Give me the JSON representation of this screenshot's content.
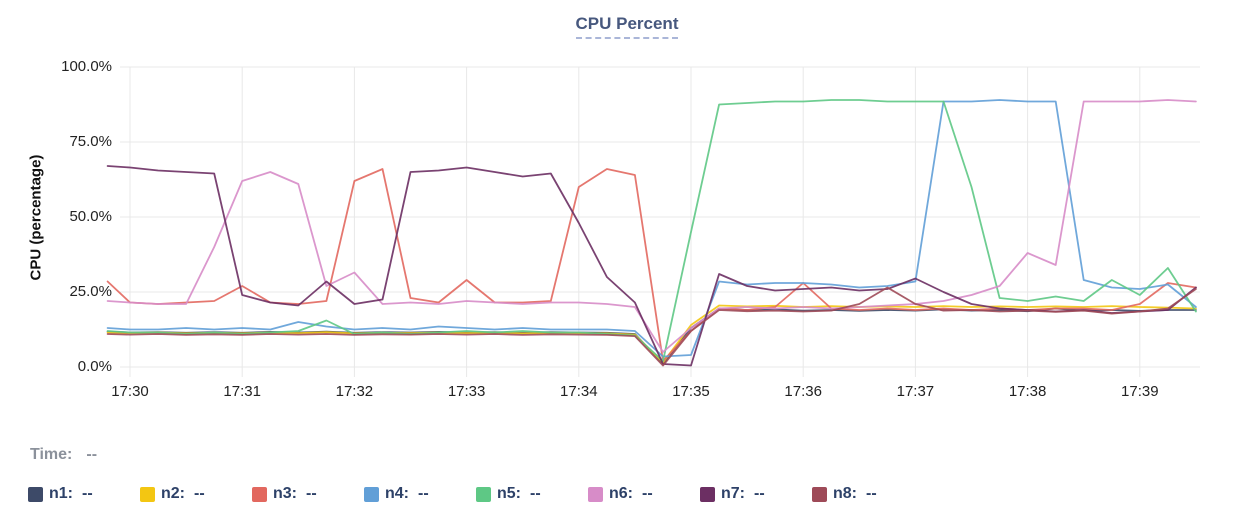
{
  "title": "CPU Percent",
  "time_row": {
    "label": "Time:",
    "value": "--"
  },
  "colors": {
    "title_text": "#47587e",
    "title_underline": "#aab6d8",
    "grid_line": "#e8e8e8",
    "tick_text": "#222222",
    "legend_text": "#2d4168",
    "muted_text": "#8b919b"
  },
  "chart_data": {
    "type": "line",
    "title": "CPU Percent",
    "xlabel": "",
    "ylabel": "CPU (percentage)",
    "ylim": [
      0,
      100
    ],
    "y_tick_values": [
      100,
      75,
      50,
      25,
      0
    ],
    "y_tick_labels": [
      "100.0%",
      "75.0%",
      "50.0%",
      "25.0%",
      "0.0%"
    ],
    "x_tick_labels": [
      "17:30",
      "17:31",
      "17:32",
      "17:33",
      "17:34",
      "17:35",
      "17:36",
      "17:37",
      "17:38",
      "17:39"
    ],
    "x_unit": "minutes after 17:30",
    "grid": true,
    "legend_position": "bottom",
    "x": [
      -0.2,
      0,
      0.25,
      0.5,
      0.75,
      1,
      1.25,
      1.5,
      1.75,
      2,
      2.25,
      2.5,
      2.75,
      3,
      3.25,
      3.5,
      3.75,
      4,
      4.25,
      4.5,
      4.75,
      5,
      5.25,
      5.5,
      5.75,
      6,
      6.25,
      6.5,
      6.75,
      7,
      7.25,
      7.5,
      7.75,
      8,
      8.25,
      8.5,
      8.75,
      9,
      9.25,
      9.5
    ],
    "series": [
      {
        "name": "n1",
        "legend_value": "--",
        "color": "#3D4A68",
        "values": [
          11.8,
          11.5,
          11.6,
          11.4,
          11.6,
          11.4,
          11.7,
          11.5,
          11.8,
          11.4,
          11.6,
          11.5,
          11.7,
          11.5,
          11.6,
          11.4,
          11.6,
          11.5,
          11.4,
          11,
          1,
          13,
          19.5,
          19,
          19.2,
          18.8,
          19,
          18.7,
          19,
          18.8,
          19.2,
          18.8,
          19,
          18.6,
          19.5,
          18.8,
          19,
          18.7,
          19,
          19
        ]
      },
      {
        "name": "n2",
        "legend_value": "--",
        "color": "#F3C612",
        "values": [
          11.5,
          11.3,
          11.5,
          11.2,
          11.4,
          11.2,
          11.5,
          11.3,
          11.6,
          11.2,
          11.4,
          11.3,
          11.5,
          11.3,
          11.5,
          11.2,
          11.4,
          11.3,
          11.2,
          10.8,
          1.5,
          14,
          20.5,
          20.2,
          20.4,
          20,
          20.3,
          20,
          20.2,
          20,
          20.3,
          20,
          20.2,
          20,
          20.2,
          20,
          20.3,
          20,
          19.8,
          19.5
        ]
      },
      {
        "name": "n3",
        "legend_value": "--",
        "color": "#E2685F",
        "values": [
          28.5,
          21.5,
          21,
          21.5,
          22,
          27,
          21.5,
          21,
          22,
          62,
          66,
          23,
          21.5,
          29,
          21.5,
          21.5,
          22,
          60,
          66,
          64,
          2,
          12,
          19.5,
          19,
          20,
          28,
          19.5,
          19,
          19.5,
          19,
          19.5,
          19,
          19.5,
          19,
          19.5,
          19.5,
          19,
          21,
          28,
          26.5
        ]
      },
      {
        "name": "n4",
        "legend_value": "--",
        "color": "#619FD7",
        "values": [
          13,
          12.5,
          12.5,
          13,
          12.5,
          13,
          12.5,
          15,
          13.5,
          12.5,
          13,
          12.5,
          13.5,
          13,
          12.5,
          13,
          12.5,
          12.5,
          12.5,
          12,
          3.5,
          4,
          28.5,
          27.5,
          28,
          28,
          27.5,
          26.5,
          27,
          28.5,
          88.5,
          88.5,
          89,
          88.5,
          88.5,
          29,
          26.5,
          26,
          27.5,
          20
        ]
      },
      {
        "name": "n5",
        "legend_value": "--",
        "color": "#5EC885",
        "values": [
          12,
          11.5,
          11.5,
          11,
          11.5,
          11,
          11.5,
          12,
          15.5,
          11,
          11.5,
          11,
          11.5,
          12,
          11.5,
          12,
          11.5,
          11.5,
          11,
          10.5,
          2,
          45,
          87.5,
          88,
          88.5,
          88.5,
          89,
          89,
          88.5,
          88.5,
          88.5,
          60,
          23,
          22,
          23.5,
          22,
          29,
          24,
          33,
          18.5
        ]
      },
      {
        "name": "n6",
        "legend_value": "--",
        "color": "#D78CC8",
        "values": [
          22,
          21.5,
          21,
          21,
          40,
          62,
          65,
          61,
          27,
          31.5,
          21,
          21.5,
          21,
          22,
          21.5,
          21,
          21.5,
          21.5,
          21,
          20,
          5,
          13,
          19.5,
          20,
          19.5,
          20,
          19.5,
          20,
          20.5,
          21,
          22,
          24,
          27,
          38,
          34,
          88.5,
          88.5,
          88.5,
          89,
          88.5
        ]
      },
      {
        "name": "n7",
        "legend_value": "--",
        "color": "#6C2F63",
        "values": [
          67,
          66.5,
          65.5,
          65,
          64.5,
          24,
          21.5,
          20.5,
          28.5,
          21,
          22.5,
          65,
          65.5,
          66.5,
          65,
          63.5,
          64.5,
          48,
          30,
          21.5,
          1,
          0.5,
          31,
          27,
          25.5,
          26,
          26.5,
          25.5,
          26,
          29.5,
          25,
          21,
          19.5,
          19,
          18.5,
          19,
          18,
          18.5,
          19,
          26.5
        ]
      },
      {
        "name": "n8",
        "legend_value": "--",
        "color": "#9E4A58",
        "values": [
          11,
          10.8,
          11,
          10.7,
          10.9,
          10.7,
          11,
          10.8,
          11,
          10.7,
          10.9,
          10.8,
          11,
          10.8,
          11,
          10.7,
          10.9,
          10.8,
          10.7,
          10.3,
          0.5,
          12,
          19,
          18.6,
          18.8,
          18.5,
          18.8,
          21,
          26.5,
          21,
          18.8,
          19,
          18.5,
          18.8,
          18.4,
          18.8,
          17.8,
          18.5,
          19.5,
          26
        ]
      }
    ]
  }
}
